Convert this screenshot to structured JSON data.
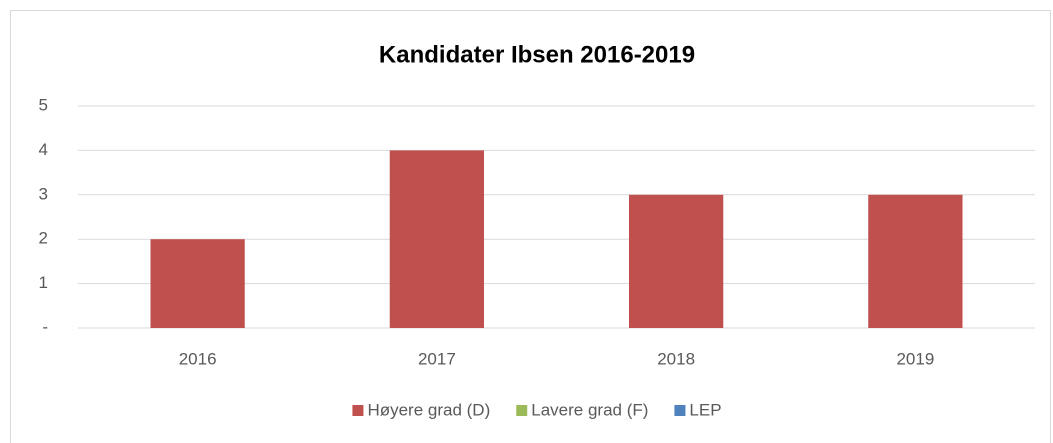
{
  "chart_data": {
    "type": "bar",
    "stacked": true,
    "title": "Kandidater Ibsen 2016-2019",
    "categories": [
      "2016",
      "2017",
      "2018",
      "2019"
    ],
    "series": [
      {
        "name": "Høyere grad (D)",
        "color": "#c0504d",
        "values": [
          2,
          4,
          3,
          3
        ]
      },
      {
        "name": "Lavere grad (F)",
        "color": "#9bbb59",
        "values": [
          0,
          0,
          0,
          0
        ]
      },
      {
        "name": "LEP",
        "color": "#4f81bd",
        "values": [
          0,
          0,
          0,
          0
        ]
      }
    ],
    "ylim": [
      0,
      5
    ],
    "yticks": [
      {
        "value": 0,
        "label": "-"
      },
      1,
      2,
      3,
      4,
      5
    ],
    "grid": true,
    "legend": "bottom"
  }
}
